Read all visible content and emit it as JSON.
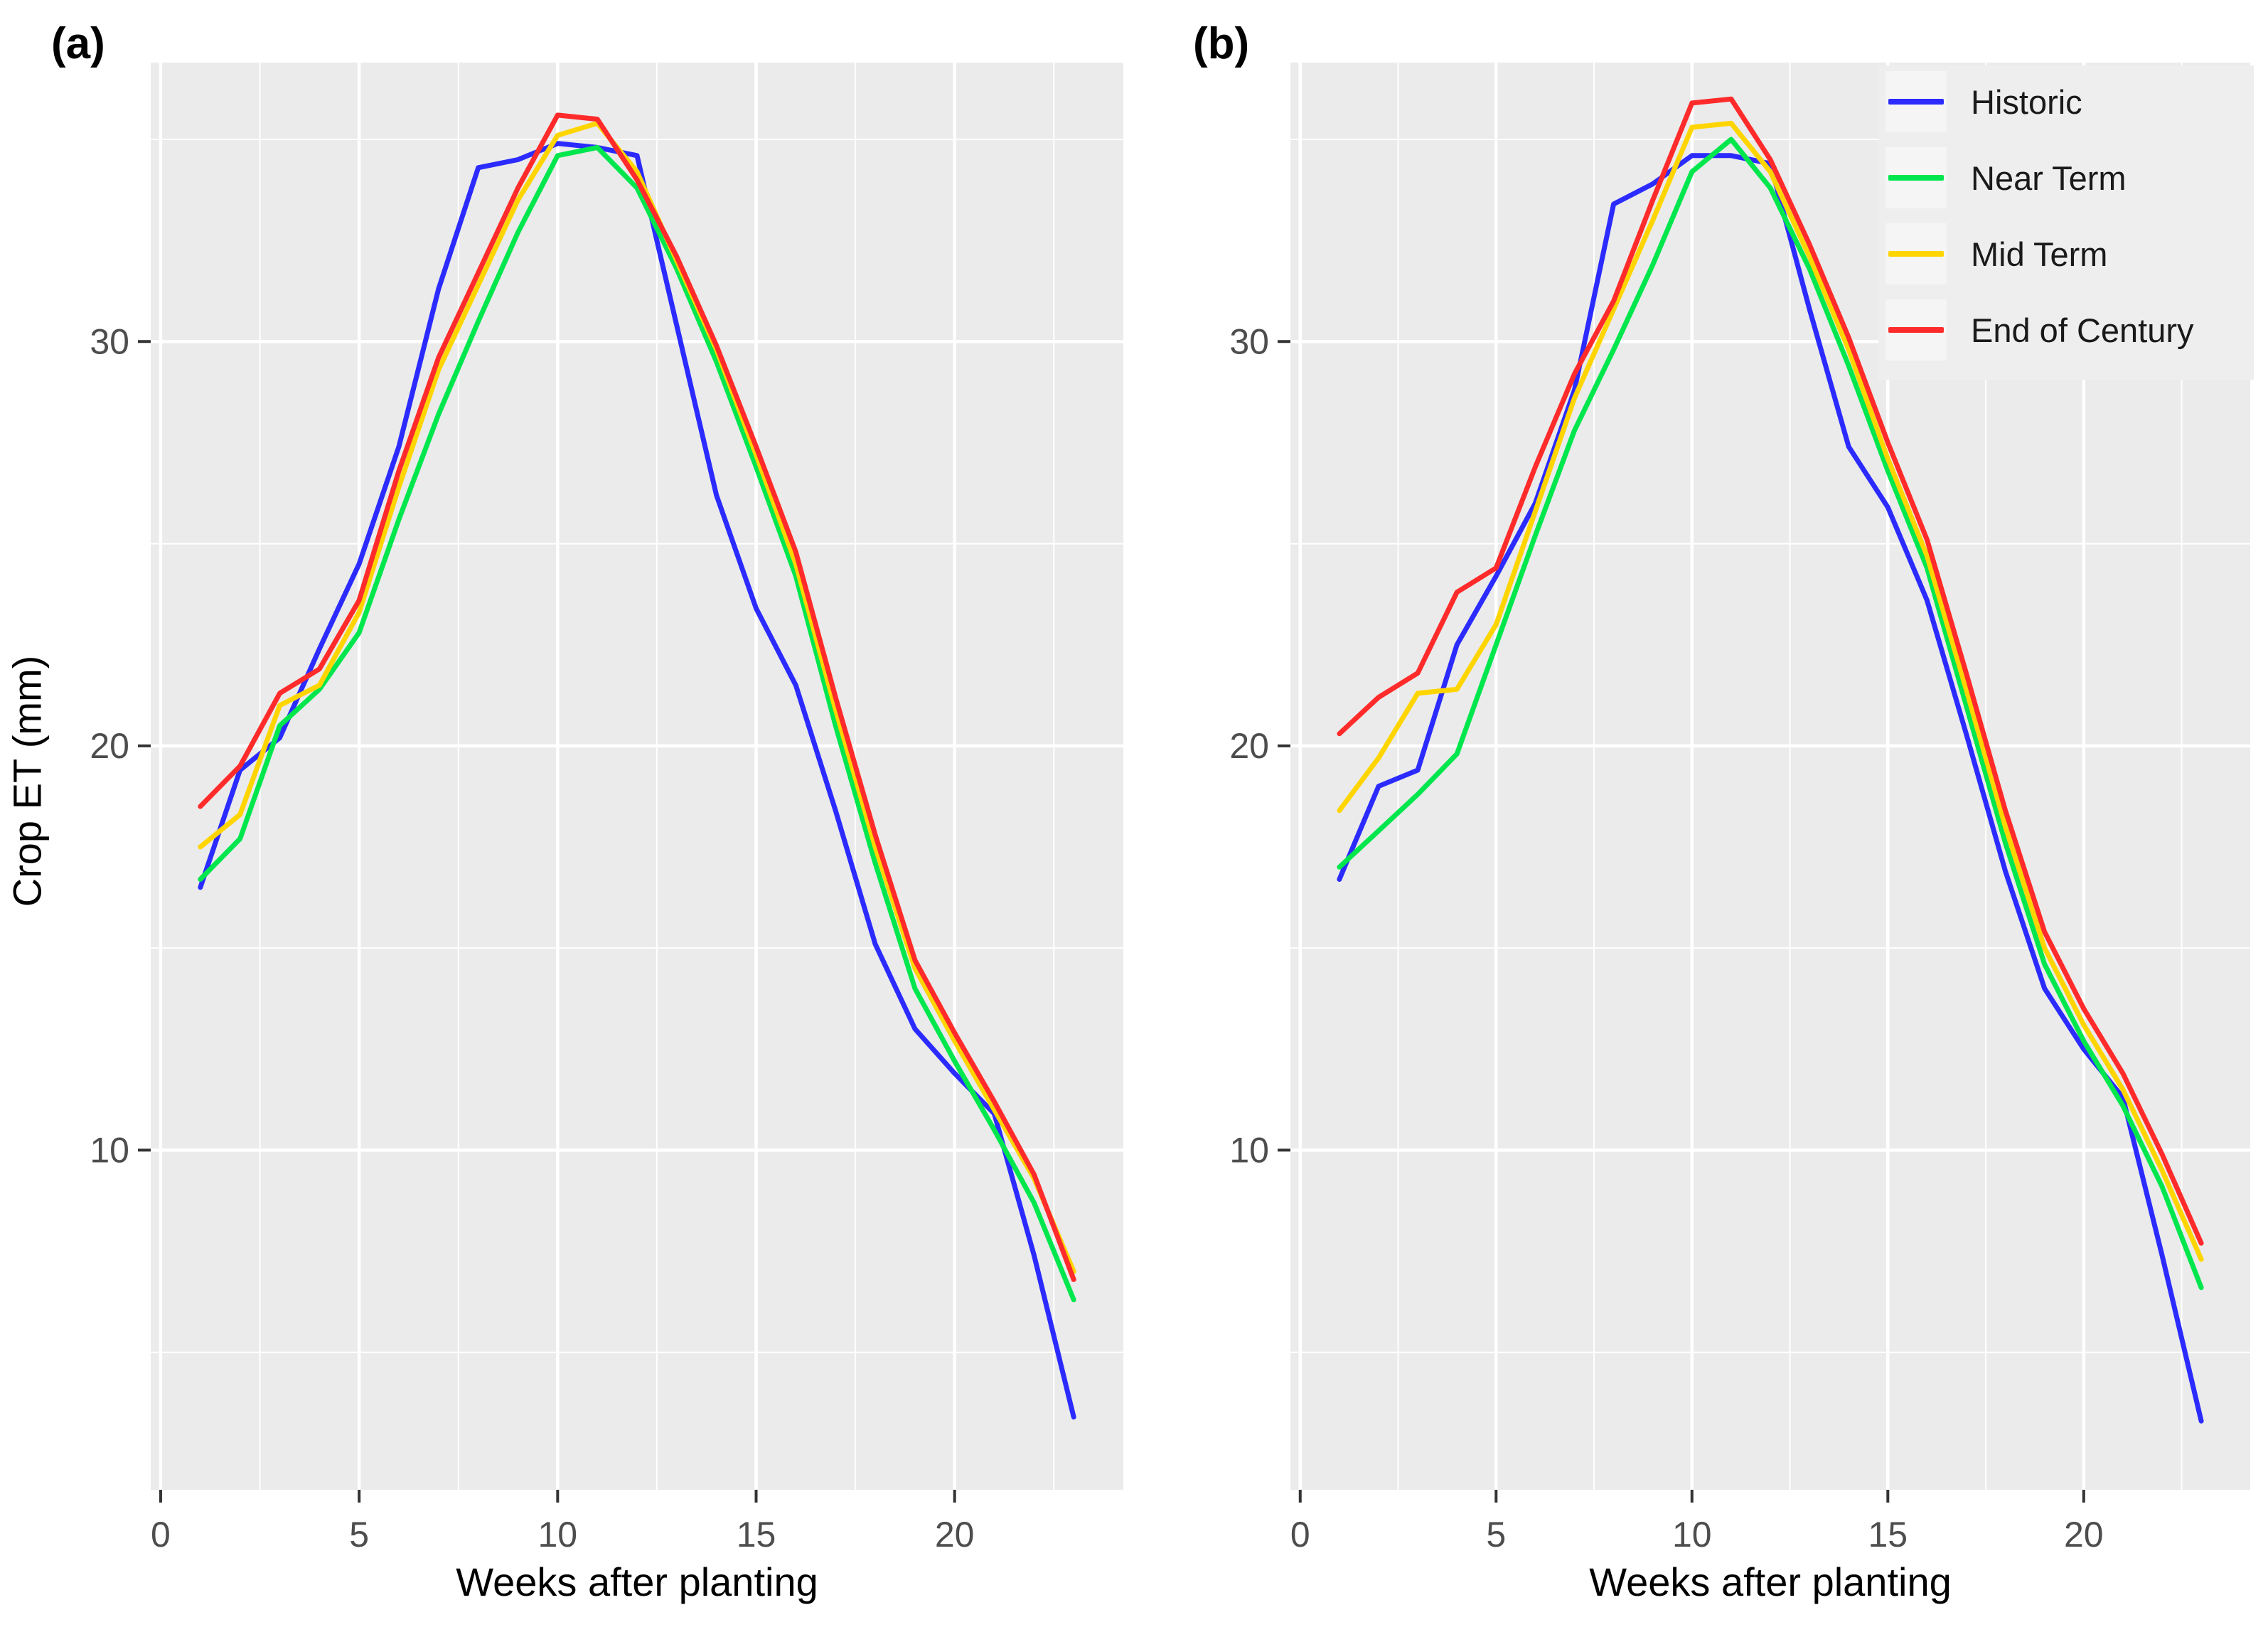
{
  "figure": {
    "background": "#ffffff",
    "y_axis_title": "Crop ET (mm)"
  },
  "colors": {
    "panel_background": "#ebebeb",
    "gridline": "#ffffff",
    "tick_mark": "#333333",
    "tick_label": "#4d4d4d",
    "axis_title": "#000000",
    "legend_background": "#eeeeee",
    "legend_key_background": "#f5f5f5",
    "historic": "#2b2bff",
    "near_term": "#00e64d",
    "mid_term": "#ffd500",
    "end_of_century": "#ff2b2b"
  },
  "legend": {
    "position": "top-right-inside-panel-b",
    "items": [
      {
        "label": "Historic",
        "color": "#2b2bff"
      },
      {
        "label": "Near Term",
        "color": "#00e64d"
      },
      {
        "label": "Mid Term",
        "color": "#ffd500"
      },
      {
        "label": "End of Century",
        "color": "#ff2b2b"
      }
    ]
  },
  "chart_data": [
    {
      "type": "line",
      "panel_label": "(a)",
      "xlabel": "Weeks after planting",
      "ylabel": "Crop ET (mm)",
      "x": [
        1,
        2,
        3,
        4,
        5,
        6,
        7,
        8,
        9,
        10,
        11,
        12,
        13,
        14,
        15,
        16,
        17,
        18,
        19,
        20,
        21,
        22,
        23
      ],
      "xticks": [
        0,
        5,
        10,
        15,
        20
      ],
      "yticks": [
        10,
        20,
        30
      ],
      "x_minor": [
        2.5,
        7.5,
        12.5,
        17.5,
        22.5
      ],
      "y_minor": [
        5,
        15,
        25,
        35
      ],
      "xlim": [
        -0.25,
        24.25
      ],
      "ylim": [
        1.6,
        36.9
      ],
      "grid": true,
      "legend_shown": false,
      "series": [
        {
          "name": "Historic",
          "color_key": "historic",
          "values": [
            16.5,
            19.4,
            20.2,
            22.4,
            24.5,
            27.4,
            31.3,
            34.3,
            34.5,
            34.9,
            34.8,
            34.6,
            30.4,
            26.2,
            23.4,
            21.5,
            18.4,
            15.1,
            13.0,
            11.9,
            10.9,
            7.4,
            3.4
          ]
        },
        {
          "name": "Near Term",
          "color_key": "near_term",
          "values": [
            16.7,
            17.7,
            20.5,
            21.4,
            22.8,
            25.6,
            28.2,
            30.5,
            32.7,
            34.6,
            34.8,
            33.8,
            31.8,
            29.5,
            26.9,
            24.2,
            20.5,
            17.1,
            14.0,
            12.2,
            10.5,
            8.7,
            6.3
          ]
        },
        {
          "name": "Mid Term",
          "color_key": "mid_term",
          "values": [
            17.5,
            18.3,
            21.0,
            21.5,
            23.3,
            26.4,
            29.3,
            31.4,
            33.5,
            35.1,
            35.4,
            34.2,
            32.0,
            29.8,
            27.2,
            24.5,
            20.9,
            17.5,
            14.5,
            12.7,
            11.0,
            9.3,
            7.0
          ]
        },
        {
          "name": "End of Century",
          "color_key": "end_of_century",
          "values": [
            18.5,
            19.5,
            21.3,
            21.9,
            23.6,
            26.8,
            29.6,
            31.7,
            33.8,
            35.6,
            35.5,
            34.0,
            32.1,
            29.9,
            27.4,
            24.8,
            21.2,
            17.8,
            14.7,
            12.9,
            11.2,
            9.4,
            6.8
          ]
        }
      ]
    },
    {
      "type": "line",
      "panel_label": "(b)",
      "xlabel": "Weeks after planting",
      "ylabel": "",
      "x": [
        1,
        2,
        3,
        4,
        5,
        6,
        7,
        8,
        9,
        10,
        11,
        12,
        13,
        14,
        15,
        16,
        17,
        18,
        19,
        20,
        21,
        22,
        23
      ],
      "xticks": [
        0,
        5,
        10,
        15,
        20
      ],
      "yticks": [
        10,
        20,
        30
      ],
      "x_minor": [
        2.5,
        7.5,
        12.5,
        17.5,
        22.5
      ],
      "y_minor": [
        5,
        15,
        25,
        35
      ],
      "xlim": [
        -0.25,
        24.25
      ],
      "ylim": [
        1.6,
        36.9
      ],
      "grid": true,
      "legend_shown": true,
      "series": [
        {
          "name": "Historic",
          "color_key": "historic",
          "values": [
            16.7,
            19.0,
            19.4,
            22.5,
            24.2,
            26.0,
            28.8,
            33.4,
            33.9,
            34.6,
            34.6,
            34.4,
            30.8,
            27.4,
            25.9,
            23.6,
            20.3,
            16.9,
            14.0,
            12.5,
            11.3,
            7.4,
            3.3
          ]
        },
        {
          "name": "Near Term",
          "color_key": "near_term",
          "values": [
            17.0,
            17.9,
            18.8,
            19.8,
            22.5,
            25.2,
            27.8,
            29.8,
            31.9,
            34.2,
            35.0,
            33.8,
            31.8,
            29.4,
            26.8,
            24.4,
            21.0,
            17.6,
            14.6,
            12.7,
            11.1,
            9.1,
            6.6
          ]
        },
        {
          "name": "Mid Term",
          "color_key": "mid_term",
          "values": [
            18.4,
            19.7,
            21.3,
            21.4,
            23.0,
            25.8,
            28.6,
            30.8,
            33.0,
            35.3,
            35.4,
            34.2,
            32.1,
            29.8,
            27.1,
            24.7,
            21.4,
            18.0,
            15.0,
            13.1,
            11.5,
            9.5,
            7.3
          ]
        },
        {
          "name": "End of Century",
          "color_key": "end_of_century",
          "values": [
            20.3,
            21.2,
            21.8,
            23.8,
            24.4,
            26.9,
            29.2,
            31.0,
            33.5,
            35.9,
            36.0,
            34.5,
            32.4,
            30.1,
            27.5,
            25.1,
            21.8,
            18.4,
            15.4,
            13.5,
            11.9,
            9.9,
            7.7
          ]
        }
      ]
    }
  ]
}
